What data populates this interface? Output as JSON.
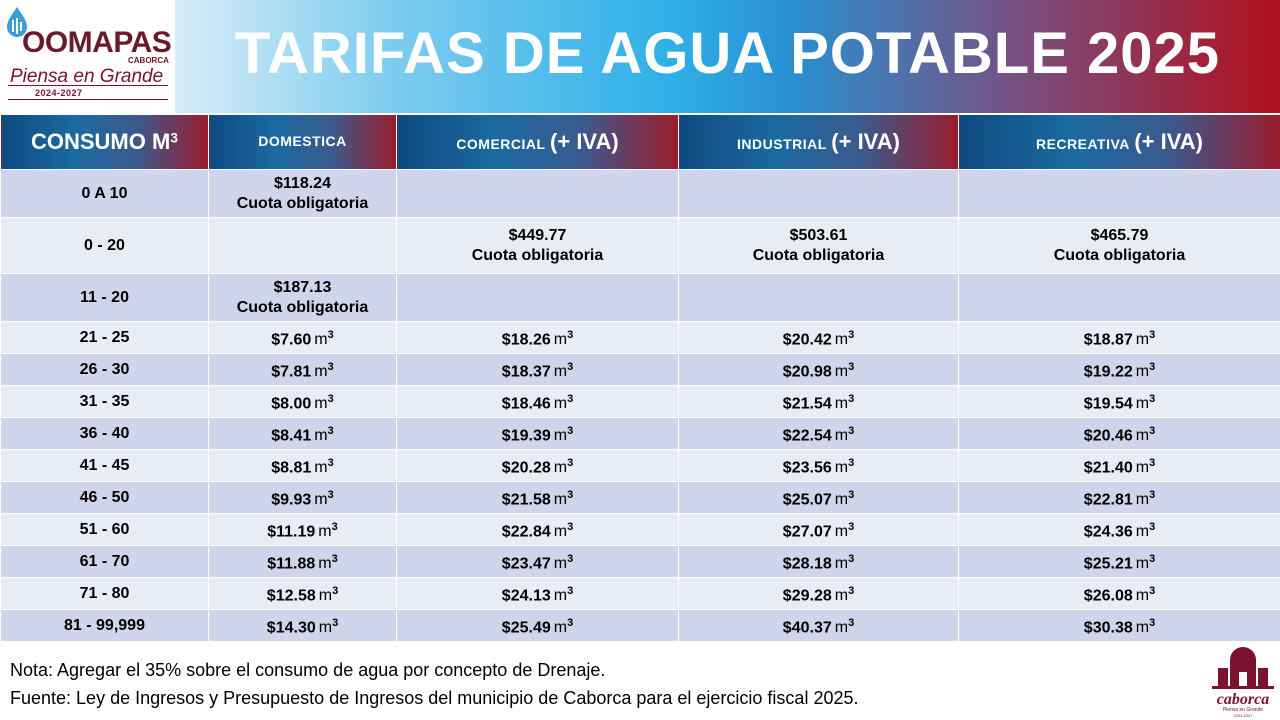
{
  "logo": {
    "name": "OOMAPAS",
    "subtitle": "CABORCA",
    "slogan": "Piensa en Grande",
    "years": "2024-2027"
  },
  "title": "TARIFAS DE AGUA POTABLE 2025",
  "table": {
    "headers": [
      {
        "main": "CONSUMO M",
        "sup": "3",
        "suffix": ""
      },
      {
        "main": "DOMESTICA",
        "sup": "",
        "suffix": ""
      },
      {
        "main": "COMERCIAL",
        "sup": "",
        "suffix": "(+ IVA)"
      },
      {
        "main": "INDUSTRIAL",
        "sup": "",
        "suffix": "(+ IVA)"
      },
      {
        "main": "RECREATIVA",
        "sup": "",
        "suffix": "(+ IVA)"
      }
    ],
    "unit": "m",
    "unit_sup": "3",
    "fixed_rows": [
      {
        "range": "0 A 10",
        "domestica": "$118.24",
        "comercial": "",
        "industrial": "",
        "recreativa": ""
      },
      {
        "range": "0 - 20",
        "domestica": "",
        "comercial": "$449.77",
        "industrial": "$503.61",
        "recreativa": "$465.79"
      },
      {
        "range": "11 - 20",
        "domestica": "$187.13",
        "comercial": "",
        "industrial": "",
        "recreativa": ""
      }
    ],
    "fixed_label": "Cuota obligatoria",
    "rate_rows": [
      {
        "range": "21 - 25",
        "domestica": "$7.60",
        "comercial": "$18.26",
        "industrial": "$20.42",
        "recreativa": "$18.87"
      },
      {
        "range": "26 - 30",
        "domestica": "$7.81",
        "comercial": "$18.37",
        "industrial": "$20.98",
        "recreativa": "$19.22"
      },
      {
        "range": "31 - 35",
        "domestica": "$8.00",
        "comercial": "$18.46",
        "industrial": "$21.54",
        "recreativa": "$19.54"
      },
      {
        "range": "36 - 40",
        "domestica": "$8.41",
        "comercial": "$19.39",
        "industrial": "$22.54",
        "recreativa": "$20.46"
      },
      {
        "range": "41 - 45",
        "domestica": "$8.81",
        "comercial": "$20.28",
        "industrial": "$23.56",
        "recreativa": "$21.40"
      },
      {
        "range": "46 - 50",
        "domestica": "$9.93",
        "comercial": "$21.58",
        "industrial": "$25.07",
        "recreativa": "$22.81"
      },
      {
        "range": "51 - 60",
        "domestica": "$11.19",
        "comercial": "$22.84",
        "industrial": "$27.07",
        "recreativa": "$24.36"
      },
      {
        "range": "61 - 70",
        "domestica": "$11.88",
        "comercial": "$23.47",
        "industrial": "$28.18",
        "recreativa": "$25.21"
      },
      {
        "range": "71 - 80",
        "domestica": "$12.58",
        "comercial": "$24.13",
        "industrial": "$29.28",
        "recreativa": "$26.08"
      },
      {
        "range": "81 - 99,999",
        "domestica": "$14.30",
        "comercial": "$25.49",
        "industrial": "$40.37",
        "recreativa": "$30.38"
      }
    ]
  },
  "notes": {
    "nota": "Nota: Agregar el 35% sobre el consumo de agua por concepto de Drenaje.",
    "fuente": "Fuente: Ley de Ingresos y Presupuesto de Ingresos del municipio de Caborca para el ejercicio fiscal 2025."
  },
  "caborca_logo": {
    "name": "caborca",
    "slogan": "Piensa en Grande",
    "years": "2024-2027"
  },
  "colors": {
    "header_blue": "#0e4a80",
    "header_red": "#9a1c2c",
    "row_even": "#cfd5ea",
    "row_odd": "#e9ebf5",
    "brand_maroon": "#7a1230"
  }
}
